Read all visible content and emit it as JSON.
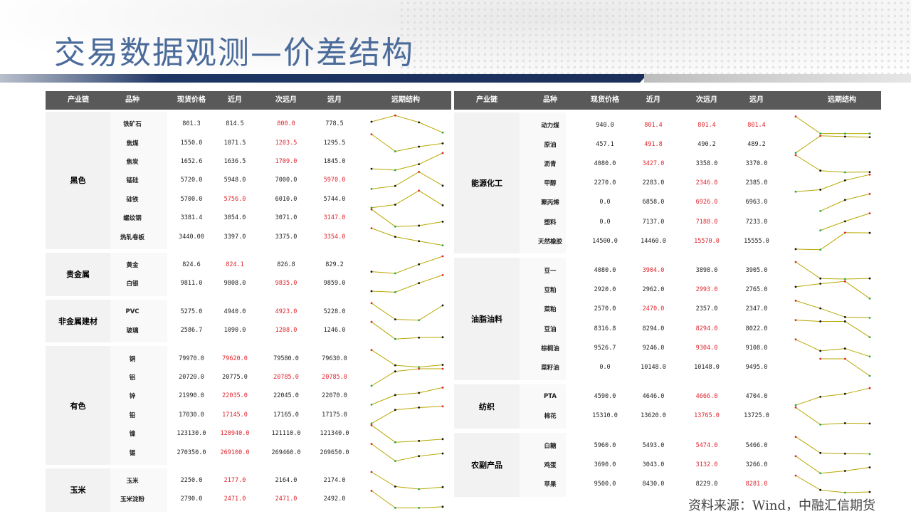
{
  "title": "交易数据观测—价差结构",
  "source": "资料来源：Wind，中融汇信期货",
  "headers": [
    "产业链",
    "品种",
    "现货价格",
    "近月",
    "次远月",
    "远月",
    "远期结构"
  ],
  "colors": {
    "highlight": "#e0242c",
    "header_bg": "#595959",
    "spark_line": "#b8a800",
    "spark_max": "#e0242c",
    "spark_min": "#2aa84a"
  },
  "left_table": [
    {
      "chain": "黑色",
      "rows": [
        {
          "name": "铁矿石",
          "vals": [
            "801.3",
            "814.5",
            "800.0",
            "778.5"
          ],
          "red": [
            2
          ]
        },
        {
          "name": "焦煤",
          "vals": [
            "1550.0",
            "1071.5",
            "1203.5",
            "1295.5"
          ],
          "red": [
            2
          ]
        },
        {
          "name": "焦炭",
          "vals": [
            "1652.6",
            "1636.5",
            "1709.0",
            "1845.0"
          ],
          "red": [
            2
          ]
        },
        {
          "name": "锰硅",
          "vals": [
            "5720.0",
            "5948.0",
            "7000.0",
            "5970.0"
          ],
          "red": [
            3
          ]
        },
        {
          "name": "硅铁",
          "vals": [
            "5700.0",
            "5756.0",
            "6010.0",
            "5744.0"
          ],
          "red": [
            1
          ]
        },
        {
          "name": "螺纹钢",
          "vals": [
            "3381.4",
            "3054.0",
            "3071.0",
            "3147.0"
          ],
          "red": [
            3
          ]
        },
        {
          "name": "热轧卷板",
          "vals": [
            "3440.00",
            "3397.0",
            "3375.0",
            "3354.0"
          ],
          "red": [
            3
          ]
        }
      ]
    },
    {
      "chain": "贵金属",
      "rows": [
        {
          "name": "黄金",
          "vals": [
            "824.6",
            "824.1",
            "826.8",
            "829.2"
          ],
          "red": [
            1
          ]
        },
        {
          "name": "白银",
          "vals": [
            "9811.0",
            "9808.0",
            "9835.0",
            "9859.0"
          ],
          "red": [
            2
          ]
        }
      ]
    },
    {
      "chain": "非金属建材",
      "rows": [
        {
          "name": "PVC",
          "vals": [
            "5275.0",
            "4940.0",
            "4923.0",
            "5228.0"
          ],
          "red": [
            2
          ]
        },
        {
          "name": "玻璃",
          "vals": [
            "2586.7",
            "1090.0",
            "1208.0",
            "1246.0"
          ],
          "red": [
            2
          ]
        }
      ]
    },
    {
      "chain": "有色",
      "rows": [
        {
          "name": "铜",
          "vals": [
            "79970.0",
            "79620.0",
            "79580.0",
            "79630.0"
          ],
          "red": [
            1
          ]
        },
        {
          "name": "铝",
          "vals": [
            "20720.0",
            "20775.0",
            "20785.0",
            "20785.0"
          ],
          "red": [
            2,
            3
          ]
        },
        {
          "name": "锌",
          "vals": [
            "21990.0",
            "22035.0",
            "22045.0",
            "22070.0"
          ],
          "red": [
            1
          ]
        },
        {
          "name": "铅",
          "vals": [
            "17030.0",
            "17145.0",
            "17165.0",
            "17175.0"
          ],
          "red": [
            1
          ]
        },
        {
          "name": "镍",
          "vals": [
            "123130.0",
            "120940.0",
            "121110.0",
            "121340.0"
          ],
          "red": [
            1
          ]
        },
        {
          "name": "锡",
          "vals": [
            "270350.0",
            "269100.0",
            "269460.0",
            "269650.0"
          ],
          "red": [
            1
          ]
        }
      ]
    },
    {
      "chain": "玉米",
      "rows": [
        {
          "name": "玉米",
          "vals": [
            "2250.0",
            "2177.0",
            "2164.0",
            "2174.0"
          ],
          "red": [
            1
          ]
        },
        {
          "name": "玉米淀粉",
          "vals": [
            "2790.0",
            "2471.0",
            "2471.0",
            "2492.0"
          ],
          "red": [
            1,
            2
          ]
        }
      ]
    }
  ],
  "right_table": [
    {
      "chain": "能源化工",
      "rows": [
        {
          "name": "动力煤",
          "vals": [
            "940.0",
            "801.4",
            "801.4",
            "801.4"
          ],
          "red": [
            1,
            2,
            3
          ]
        },
        {
          "name": "原油",
          "vals": [
            "457.1",
            "491.8",
            "490.2",
            "489.2"
          ],
          "red": [
            1
          ]
        },
        {
          "name": "沥青",
          "vals": [
            "4080.0",
            "3427.0",
            "3358.0",
            "3370.0"
          ],
          "red": [
            1
          ]
        },
        {
          "name": "甲醇",
          "vals": [
            "2270.0",
            "2283.0",
            "2346.0",
            "2385.0"
          ],
          "red": [
            2
          ]
        },
        {
          "name": "聚丙烯",
          "vals": [
            "0.0",
            "6858.0",
            "6926.0",
            "6963.0"
          ],
          "red": [
            2
          ]
        },
        {
          "name": "塑料",
          "vals": [
            "0.0",
            "7137.0",
            "7188.0",
            "7233.0"
          ],
          "red": [
            2
          ]
        },
        {
          "name": "天然橡胶",
          "vals": [
            "14500.0",
            "14460.0",
            "15570.0",
            "15555.0"
          ],
          "red": [
            2
          ]
        }
      ]
    },
    {
      "chain": "油脂油料",
      "rows": [
        {
          "name": "豆一",
          "vals": [
            "4080.0",
            "3904.0",
            "3898.0",
            "3905.0"
          ],
          "red": [
            1
          ]
        },
        {
          "name": "豆粕",
          "vals": [
            "2920.0",
            "2962.0",
            "2993.0",
            "2765.0"
          ],
          "red": [
            2
          ]
        },
        {
          "name": "菜粕",
          "vals": [
            "2570.0",
            "2470.0",
            "2357.0",
            "2347.0"
          ],
          "red": [
            1
          ]
        },
        {
          "name": "豆油",
          "vals": [
            "8316.8",
            "8294.0",
            "8294.0",
            "8022.0"
          ],
          "red": [
            2
          ]
        },
        {
          "name": "棕榈油",
          "vals": [
            "9526.7",
            "9246.0",
            "9304.0",
            "9108.0"
          ],
          "red": [
            2
          ]
        },
        {
          "name": "菜籽油",
          "vals": [
            "0.0",
            "10148.0",
            "10148.0",
            "9495.0"
          ],
          "red": []
        }
      ]
    },
    {
      "chain": "纺织",
      "rows": [
        {
          "name": "PTA",
          "vals": [
            "4590.0",
            "4646.0",
            "4666.0",
            "4704.0"
          ],
          "red": [
            2
          ]
        },
        {
          "name": "棉花",
          "vals": [
            "15310.0",
            "13620.0",
            "13765.0",
            "13725.0"
          ],
          "red": [
            2
          ]
        }
      ]
    },
    {
      "chain": "农副产品",
      "rows": [
        {
          "name": "白糖",
          "vals": [
            "5960.0",
            "5493.0",
            "5474.0",
            "5466.0"
          ],
          "red": [
            2
          ]
        },
        {
          "name": "鸡蛋",
          "vals": [
            "3690.0",
            "3043.0",
            "3132.0",
            "3266.0"
          ],
          "red": [
            2
          ]
        },
        {
          "name": "苹果",
          "vals": [
            "9500.0",
            "8430.0",
            "8229.0",
            "8281.0"
          ],
          "red": [
            3
          ]
        }
      ]
    }
  ]
}
